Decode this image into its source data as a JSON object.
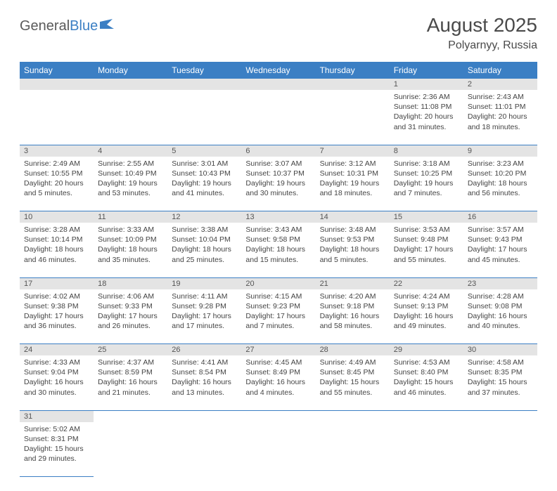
{
  "logo": {
    "part1": "General",
    "part2": "Blue"
  },
  "title": "August 2025",
  "location": "Polyarnyy, Russia",
  "colors": {
    "header_bg": "#3b7fc4",
    "header_fg": "#ffffff",
    "daynum_bg": "#e4e4e4",
    "row_border": "#3b7fc4",
    "text": "#444444"
  },
  "weekdays": [
    "Sunday",
    "Monday",
    "Tuesday",
    "Wednesday",
    "Thursday",
    "Friday",
    "Saturday"
  ],
  "weeks": [
    [
      null,
      null,
      null,
      null,
      null,
      {
        "d": "1",
        "sr": "Sunrise: 2:36 AM",
        "ss": "Sunset: 11:08 PM",
        "dl1": "Daylight: 20 hours",
        "dl2": "and 31 minutes."
      },
      {
        "d": "2",
        "sr": "Sunrise: 2:43 AM",
        "ss": "Sunset: 11:01 PM",
        "dl1": "Daylight: 20 hours",
        "dl2": "and 18 minutes."
      }
    ],
    [
      {
        "d": "3",
        "sr": "Sunrise: 2:49 AM",
        "ss": "Sunset: 10:55 PM",
        "dl1": "Daylight: 20 hours",
        "dl2": "and 5 minutes."
      },
      {
        "d": "4",
        "sr": "Sunrise: 2:55 AM",
        "ss": "Sunset: 10:49 PM",
        "dl1": "Daylight: 19 hours",
        "dl2": "and 53 minutes."
      },
      {
        "d": "5",
        "sr": "Sunrise: 3:01 AM",
        "ss": "Sunset: 10:43 PM",
        "dl1": "Daylight: 19 hours",
        "dl2": "and 41 minutes."
      },
      {
        "d": "6",
        "sr": "Sunrise: 3:07 AM",
        "ss": "Sunset: 10:37 PM",
        "dl1": "Daylight: 19 hours",
        "dl2": "and 30 minutes."
      },
      {
        "d": "7",
        "sr": "Sunrise: 3:12 AM",
        "ss": "Sunset: 10:31 PM",
        "dl1": "Daylight: 19 hours",
        "dl2": "and 18 minutes."
      },
      {
        "d": "8",
        "sr": "Sunrise: 3:18 AM",
        "ss": "Sunset: 10:25 PM",
        "dl1": "Daylight: 19 hours",
        "dl2": "and 7 minutes."
      },
      {
        "d": "9",
        "sr": "Sunrise: 3:23 AM",
        "ss": "Sunset: 10:20 PM",
        "dl1": "Daylight: 18 hours",
        "dl2": "and 56 minutes."
      }
    ],
    [
      {
        "d": "10",
        "sr": "Sunrise: 3:28 AM",
        "ss": "Sunset: 10:14 PM",
        "dl1": "Daylight: 18 hours",
        "dl2": "and 46 minutes."
      },
      {
        "d": "11",
        "sr": "Sunrise: 3:33 AM",
        "ss": "Sunset: 10:09 PM",
        "dl1": "Daylight: 18 hours",
        "dl2": "and 35 minutes."
      },
      {
        "d": "12",
        "sr": "Sunrise: 3:38 AM",
        "ss": "Sunset: 10:04 PM",
        "dl1": "Daylight: 18 hours",
        "dl2": "and 25 minutes."
      },
      {
        "d": "13",
        "sr": "Sunrise: 3:43 AM",
        "ss": "Sunset: 9:58 PM",
        "dl1": "Daylight: 18 hours",
        "dl2": "and 15 minutes."
      },
      {
        "d": "14",
        "sr": "Sunrise: 3:48 AM",
        "ss": "Sunset: 9:53 PM",
        "dl1": "Daylight: 18 hours",
        "dl2": "and 5 minutes."
      },
      {
        "d": "15",
        "sr": "Sunrise: 3:53 AM",
        "ss": "Sunset: 9:48 PM",
        "dl1": "Daylight: 17 hours",
        "dl2": "and 55 minutes."
      },
      {
        "d": "16",
        "sr": "Sunrise: 3:57 AM",
        "ss": "Sunset: 9:43 PM",
        "dl1": "Daylight: 17 hours",
        "dl2": "and 45 minutes."
      }
    ],
    [
      {
        "d": "17",
        "sr": "Sunrise: 4:02 AM",
        "ss": "Sunset: 9:38 PM",
        "dl1": "Daylight: 17 hours",
        "dl2": "and 36 minutes."
      },
      {
        "d": "18",
        "sr": "Sunrise: 4:06 AM",
        "ss": "Sunset: 9:33 PM",
        "dl1": "Daylight: 17 hours",
        "dl2": "and 26 minutes."
      },
      {
        "d": "19",
        "sr": "Sunrise: 4:11 AM",
        "ss": "Sunset: 9:28 PM",
        "dl1": "Daylight: 17 hours",
        "dl2": "and 17 minutes."
      },
      {
        "d": "20",
        "sr": "Sunrise: 4:15 AM",
        "ss": "Sunset: 9:23 PM",
        "dl1": "Daylight: 17 hours",
        "dl2": "and 7 minutes."
      },
      {
        "d": "21",
        "sr": "Sunrise: 4:20 AM",
        "ss": "Sunset: 9:18 PM",
        "dl1": "Daylight: 16 hours",
        "dl2": "and 58 minutes."
      },
      {
        "d": "22",
        "sr": "Sunrise: 4:24 AM",
        "ss": "Sunset: 9:13 PM",
        "dl1": "Daylight: 16 hours",
        "dl2": "and 49 minutes."
      },
      {
        "d": "23",
        "sr": "Sunrise: 4:28 AM",
        "ss": "Sunset: 9:08 PM",
        "dl1": "Daylight: 16 hours",
        "dl2": "and 40 minutes."
      }
    ],
    [
      {
        "d": "24",
        "sr": "Sunrise: 4:33 AM",
        "ss": "Sunset: 9:04 PM",
        "dl1": "Daylight: 16 hours",
        "dl2": "and 30 minutes."
      },
      {
        "d": "25",
        "sr": "Sunrise: 4:37 AM",
        "ss": "Sunset: 8:59 PM",
        "dl1": "Daylight: 16 hours",
        "dl2": "and 21 minutes."
      },
      {
        "d": "26",
        "sr": "Sunrise: 4:41 AM",
        "ss": "Sunset: 8:54 PM",
        "dl1": "Daylight: 16 hours",
        "dl2": "and 13 minutes."
      },
      {
        "d": "27",
        "sr": "Sunrise: 4:45 AM",
        "ss": "Sunset: 8:49 PM",
        "dl1": "Daylight: 16 hours",
        "dl2": "and 4 minutes."
      },
      {
        "d": "28",
        "sr": "Sunrise: 4:49 AM",
        "ss": "Sunset: 8:45 PM",
        "dl1": "Daylight: 15 hours",
        "dl2": "and 55 minutes."
      },
      {
        "d": "29",
        "sr": "Sunrise: 4:53 AM",
        "ss": "Sunset: 8:40 PM",
        "dl1": "Daylight: 15 hours",
        "dl2": "and 46 minutes."
      },
      {
        "d": "30",
        "sr": "Sunrise: 4:58 AM",
        "ss": "Sunset: 8:35 PM",
        "dl1": "Daylight: 15 hours",
        "dl2": "and 37 minutes."
      }
    ],
    [
      {
        "d": "31",
        "sr": "Sunrise: 5:02 AM",
        "ss": "Sunset: 8:31 PM",
        "dl1": "Daylight: 15 hours",
        "dl2": "and 29 minutes."
      },
      null,
      null,
      null,
      null,
      null,
      null
    ]
  ]
}
